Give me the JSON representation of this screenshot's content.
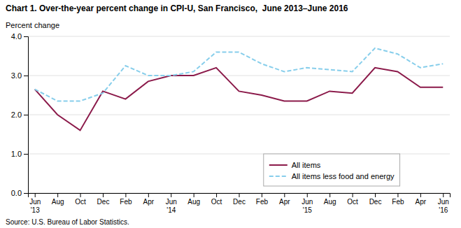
{
  "chart_data": {
    "type": "line",
    "title": "Chart 1. Over-the-year percent change in CPI-U, San Francisco,  June 2013–June 2016",
    "ylabel": "Percent change",
    "annotations": [
      "Source: U.S. Bureau of Labor Statistics."
    ],
    "categories": [
      "Jun\n'13",
      "Aug",
      "Oct",
      "Dec",
      "Feb",
      "Apr",
      "Jun\n'14",
      "Aug",
      "Oct",
      "Dec",
      "Feb",
      "Apr",
      "Jun\n'15",
      "Aug",
      "Oct",
      "Dec",
      "Feb",
      "Apr",
      "Jun\n'16"
    ],
    "series": [
      {
        "name": "All items",
        "color": "#8B1A4A",
        "line_style": "solid",
        "values": [
          2.65,
          2.0,
          1.6,
          2.6,
          2.4,
          2.85,
          3.0,
          3.0,
          3.2,
          2.6,
          2.5,
          2.35,
          2.35,
          2.6,
          2.55,
          3.2,
          3.1,
          2.7,
          2.7
        ]
      },
      {
        "name": "All items less food and energy",
        "color": "#87CEEB",
        "line_style": "dashed",
        "values": [
          2.65,
          2.35,
          2.35,
          2.55,
          3.25,
          3.0,
          3.0,
          3.1,
          3.6,
          3.6,
          3.3,
          3.1,
          3.2,
          3.15,
          3.1,
          3.7,
          3.55,
          3.2,
          3.3
        ]
      }
    ],
    "ylim": [
      0.0,
      4.0
    ],
    "yticks": [
      {
        "value": 0.0,
        "label": "0.0"
      },
      {
        "value": 1.0,
        "label": "1.0"
      },
      {
        "value": 2.0,
        "label": "2.0"
      },
      {
        "value": 3.0,
        "label": "3.0"
      },
      {
        "value": 4.0,
        "label": "4.0"
      }
    ],
    "grid": true,
    "legend": "lower right"
  }
}
